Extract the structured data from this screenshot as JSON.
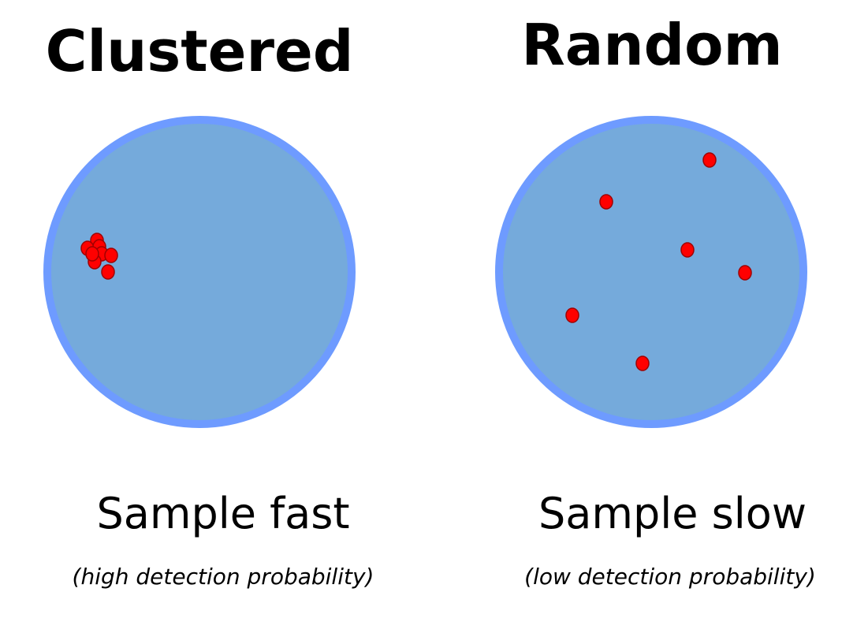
{
  "panels": [
    {
      "title": "Clustered",
      "caption": "Sample fast",
      "note": "(high detection probability)",
      "colors": {
        "circle_fill": "#75aadb",
        "circle_stroke": "#6e9bff",
        "dot_fill": "#ff0000",
        "dot_stroke": "#a00000"
      }
    },
    {
      "title": "Random",
      "caption": "Sample slow",
      "note": "(low detection probability)",
      "colors": {
        "circle_fill": "#75aadb",
        "circle_stroke": "#6e9bff",
        "dot_fill": "#ff0000",
        "dot_stroke": "#a00000"
      }
    }
  ]
}
